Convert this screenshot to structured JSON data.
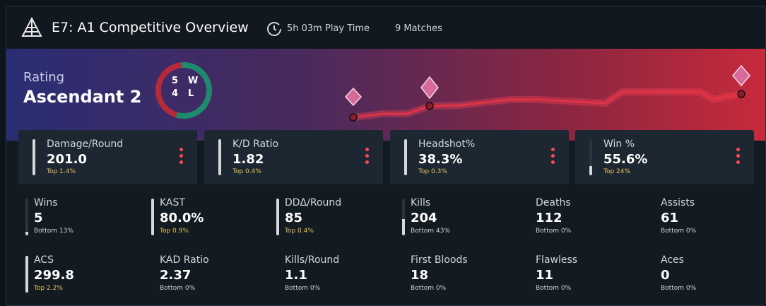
{
  "header": {
    "title": "E7: A1 Competitive Overview",
    "playtime": "5h 03m Play Time",
    "matches": "9 Matches"
  },
  "rating": {
    "label": "Rating",
    "rank": "Ascendant 2",
    "wins": "5",
    "losses": "4",
    "w": "W",
    "l": "L"
  },
  "top_stats": [
    {
      "name": "Damage/Round",
      "value": "201.0",
      "rank": "Top 1.4%"
    },
    {
      "name": "K/D Ratio",
      "value": "1.82",
      "rank": "Top 0.4%"
    },
    {
      "name": "Headshot%",
      "value": "38.3%",
      "rank": "Top 0.3%"
    },
    {
      "name": "Win %",
      "value": "55.6%",
      "rank": "Top 24%"
    }
  ],
  "stats": [
    {
      "name": "Wins",
      "value": "5",
      "rank": "Bottom 13%"
    },
    {
      "name": "KAST",
      "value": "80.0%",
      "rank": "Top 0.9%"
    },
    {
      "name": "DDΔ/Round",
      "value": "85",
      "rank": "Top 0.4%"
    },
    {
      "name": "Kills",
      "value": "204",
      "rank": "Bottom 43%"
    },
    {
      "name": "Deaths",
      "value": "112",
      "rank": "Bottom 0%"
    },
    {
      "name": "Assists",
      "value": "61",
      "rank": "Bottom 0%"
    },
    {
      "name": "ACS",
      "value": "299.8",
      "rank": "Top 2.2%"
    },
    {
      "name": "KAD Ratio",
      "value": "2.37",
      "rank": "Bottom 0%"
    },
    {
      "name": "Kills/Round",
      "value": "1.1",
      "rank": "Bottom 0%"
    },
    {
      "name": "First Bloods",
      "value": "18",
      "rank": "Bottom 0%"
    },
    {
      "name": "Flawless",
      "value": "11",
      "rank": "Bottom 0%"
    },
    {
      "name": "Aces",
      "value": "0",
      "rank": "Bottom 0%"
    }
  ]
}
